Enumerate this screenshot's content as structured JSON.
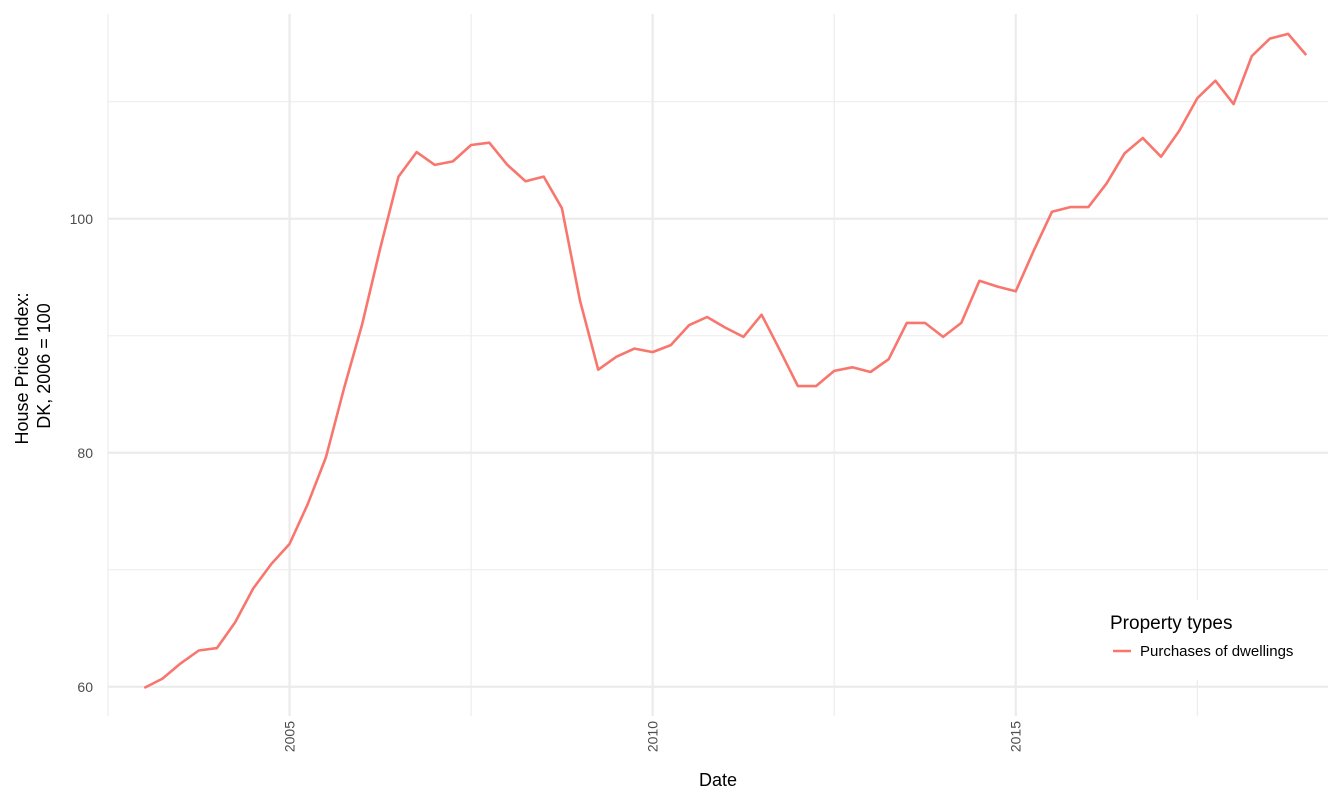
{
  "chart_data": {
    "type": "line",
    "xlabel": "Date",
    "ylabel": [
      "House Price Index:",
      "DK, 2006 = 100"
    ],
    "x_ticks": [
      2005,
      2010,
      2015
    ],
    "y_ticks": [
      60,
      80,
      100
    ],
    "xlim": [
      2002.5,
      2019.3
    ],
    "ylim": [
      57.5,
      117.5
    ],
    "grid": true,
    "legend": {
      "title": "Property types",
      "position": "bottom-right"
    },
    "series": [
      {
        "name": "Purchases of dwellings",
        "color": "#F8766D",
        "points": [
          [
            2003.0,
            59.9
          ],
          [
            2003.25,
            60.7
          ],
          [
            2003.5,
            62.0
          ],
          [
            2003.75,
            63.1
          ],
          [
            2004.0,
            63.3
          ],
          [
            2004.25,
            65.5
          ],
          [
            2004.5,
            68.4
          ],
          [
            2004.75,
            70.5
          ],
          [
            2005.0,
            72.2
          ],
          [
            2005.25,
            75.6
          ],
          [
            2005.5,
            79.6
          ],
          [
            2005.75,
            85.5
          ],
          [
            2006.0,
            91.0
          ],
          [
            2006.25,
            97.5
          ],
          [
            2006.5,
            103.6
          ],
          [
            2006.75,
            105.7
          ],
          [
            2007.0,
            104.6
          ],
          [
            2007.25,
            104.9
          ],
          [
            2007.5,
            106.3
          ],
          [
            2007.75,
            106.5
          ],
          [
            2008.0,
            104.6
          ],
          [
            2008.25,
            103.2
          ],
          [
            2008.5,
            103.6
          ],
          [
            2008.75,
            100.9
          ],
          [
            2009.0,
            93.0
          ],
          [
            2009.25,
            87.1
          ],
          [
            2009.5,
            88.2
          ],
          [
            2009.75,
            88.9
          ],
          [
            2010.0,
            88.6
          ],
          [
            2010.25,
            89.2
          ],
          [
            2010.5,
            90.9
          ],
          [
            2010.75,
            91.6
          ],
          [
            2011.0,
            90.7
          ],
          [
            2011.25,
            89.9
          ],
          [
            2011.5,
            91.8
          ],
          [
            2011.75,
            88.8
          ],
          [
            2012.0,
            85.7
          ],
          [
            2012.25,
            85.7
          ],
          [
            2012.5,
            87.0
          ],
          [
            2012.75,
            87.3
          ],
          [
            2013.0,
            86.9
          ],
          [
            2013.25,
            88.0
          ],
          [
            2013.5,
            91.1
          ],
          [
            2013.75,
            91.1
          ],
          [
            2014.0,
            89.9
          ],
          [
            2014.25,
            91.1
          ],
          [
            2014.5,
            94.7
          ],
          [
            2014.75,
            94.2
          ],
          [
            2015.0,
            93.8
          ],
          [
            2015.25,
            97.3
          ],
          [
            2015.5,
            100.6
          ],
          [
            2015.75,
            101.0
          ],
          [
            2016.0,
            101.0
          ],
          [
            2016.25,
            103.0
          ],
          [
            2016.5,
            105.6
          ],
          [
            2016.75,
            106.9
          ],
          [
            2017.0,
            105.3
          ],
          [
            2017.25,
            107.5
          ],
          [
            2017.5,
            110.3
          ],
          [
            2017.75,
            111.8
          ],
          [
            2018.0,
            109.8
          ],
          [
            2018.25,
            113.9
          ],
          [
            2018.5,
            115.4
          ],
          [
            2018.75,
            115.8
          ],
          [
            2019.0,
            114.0
          ]
        ]
      }
    ]
  }
}
